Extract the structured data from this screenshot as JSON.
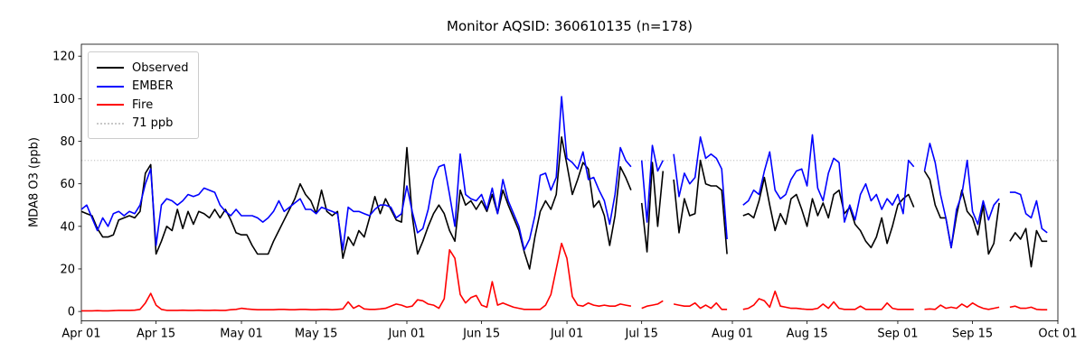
{
  "chart_data": {
    "type": "line",
    "title": "Monitor AQSID: 360610135 (n=178)",
    "ylabel": "MDA8 O3 (ppb)",
    "xlabel": "",
    "ylim": [
      -4.4,
      125.6
    ],
    "yticks": [
      0,
      20,
      40,
      60,
      80,
      100,
      120
    ],
    "xlim_days": [
      0,
      183
    ],
    "x_start_date": "Apr 01",
    "xticks": [
      {
        "day": 0,
        "label": "Apr 01"
      },
      {
        "day": 14,
        "label": "Apr 15"
      },
      {
        "day": 30,
        "label": "May 01"
      },
      {
        "day": 44,
        "label": "May 15"
      },
      {
        "day": 61,
        "label": "Jun 01"
      },
      {
        "day": 75,
        "label": "Jun 15"
      },
      {
        "day": 91,
        "label": "Jul 01"
      },
      {
        "day": 105,
        "label": "Jul 15"
      },
      {
        "day": 122,
        "label": "Aug 01"
      },
      {
        "day": 136,
        "label": "Aug 15"
      },
      {
        "day": 153,
        "label": "Sep 01"
      },
      {
        "day": 167,
        "label": "Sep 15"
      },
      {
        "day": 183,
        "label": "Oct 01"
      }
    ],
    "grid": false,
    "legend_position": "upper left",
    "legend": [
      "Observed",
      "EMBER",
      "Fire",
      "71 ppb"
    ],
    "reference_line": {
      "value": 71,
      "label": "71 ppb",
      "color": "#c8c8c8",
      "style": "dotted"
    },
    "series": [
      {
        "name": "Observed",
        "color": "#000000",
        "values": [
          47,
          46,
          45,
          39,
          35,
          35,
          36,
          43,
          44,
          45,
          44,
          47,
          65,
          69,
          27,
          33,
          40,
          38,
          48,
          39,
          47,
          41,
          47,
          46,
          44,
          48,
          44,
          48,
          43,
          37,
          36,
          36,
          31,
          27,
          27,
          27,
          33,
          38,
          43,
          48,
          53,
          60,
          55,
          52,
          46,
          57,
          47,
          45,
          47,
          25,
          35,
          31,
          38,
          35,
          44,
          54,
          46,
          53,
          48,
          43,
          42,
          77,
          45,
          27,
          33,
          40,
          46,
          50,
          46,
          38,
          33,
          57,
          50,
          52,
          48,
          52,
          47,
          55,
          46,
          57,
          50,
          44,
          38,
          28,
          20,
          35,
          47,
          52,
          48,
          55,
          82,
          69,
          55,
          62,
          70,
          67,
          49,
          52,
          45,
          31,
          45,
          68,
          63,
          57,
          null,
          51,
          28,
          70,
          40,
          66,
          null,
          62,
          37,
          53,
          45,
          46,
          71,
          60,
          59,
          59,
          57,
          27,
          null,
          null,
          45,
          46,
          44,
          52,
          63,
          50,
          38,
          46,
          41,
          53,
          55,
          48,
          40,
          53,
          45,
          51,
          44,
          55,
          57,
          46,
          49,
          41,
          38,
          33,
          30,
          35,
          44,
          32,
          40,
          50,
          53,
          55,
          49,
          null,
          66,
          62,
          50,
          44,
          44,
          30,
          45,
          57,
          47,
          44,
          36,
          50,
          27,
          32,
          51,
          null,
          33,
          37,
          34,
          39,
          21,
          38,
          33,
          33
        ]
      },
      {
        "name": "EMBER",
        "color": "#0000ff",
        "values": [
          48,
          50,
          44,
          38,
          44,
          40,
          46,
          47,
          45,
          47,
          46,
          50,
          60,
          67,
          31,
          50,
          53,
          52,
          50,
          52,
          55,
          54,
          55,
          58,
          57,
          56,
          50,
          47,
          45,
          48,
          45,
          45,
          45,
          44,
          42,
          44,
          47,
          52,
          47,
          49,
          51,
          53,
          48,
          48,
          46,
          49,
          48,
          47,
          46,
          29,
          49,
          47,
          47,
          46,
          45,
          48,
          50,
          50,
          49,
          44,
          46,
          59,
          47,
          37,
          39,
          48,
          62,
          68,
          69,
          55,
          40,
          74,
          55,
          53,
          52,
          55,
          48,
          58,
          46,
          62,
          52,
          46,
          40,
          29,
          34,
          45,
          64,
          65,
          57,
          63,
          101,
          72,
          70,
          67,
          75,
          62,
          63,
          57,
          52,
          41,
          55,
          77,
          71,
          68,
          null,
          71,
          42,
          78,
          66,
          71,
          null,
          74,
          54,
          65,
          60,
          63,
          82,
          72,
          74,
          72,
          67,
          34,
          null,
          null,
          50,
          52,
          57,
          55,
          66,
          75,
          57,
          53,
          55,
          62,
          66,
          67,
          59,
          83,
          58,
          52,
          65,
          72,
          70,
          42,
          50,
          43,
          55,
          60,
          52,
          55,
          48,
          53,
          50,
          55,
          46,
          71,
          68,
          null,
          66,
          79,
          70,
          55,
          44,
          30,
          48,
          55,
          71,
          47,
          41,
          52,
          43,
          50,
          53,
          null,
          56,
          56,
          55,
          46,
          44,
          52,
          39,
          37
        ]
      },
      {
        "name": "Fire",
        "color": "#ff0000",
        "values": [
          0.3,
          0.3,
          0.3,
          0.4,
          0.3,
          0.3,
          0.4,
          0.5,
          0.5,
          0.5,
          0.6,
          1,
          4,
          8.5,
          3,
          1,
          0.5,
          0.5,
          0.5,
          0.6,
          0.5,
          0.5,
          0.6,
          0.5,
          0.5,
          0.6,
          0.5,
          0.5,
          0.8,
          1,
          1.5,
          1.2,
          1,
          0.8,
          0.8,
          0.8,
          0.8,
          1,
          1,
          0.8,
          0.8,
          1,
          1,
          0.8,
          0.8,
          1,
          1,
          0.8,
          1,
          1.2,
          4.5,
          1.5,
          2.8,
          1.2,
          1,
          1,
          1.2,
          1.5,
          2.5,
          3.5,
          3,
          2,
          2.5,
          5.5,
          5,
          3.5,
          3,
          1.5,
          6,
          29,
          25,
          8,
          4,
          6.5,
          7.5,
          3,
          2,
          14,
          3,
          4,
          3,
          2,
          1.5,
          1,
          1,
          1,
          1,
          3,
          8,
          20,
          32,
          25,
          7,
          3,
          2.5,
          4,
          3,
          2.5,
          3,
          2.5,
          2.5,
          3.5,
          3,
          2.5,
          null,
          1.5,
          2.5,
          3,
          3.5,
          5,
          null,
          3.5,
          3,
          2.5,
          2.5,
          4,
          1.5,
          3,
          1.5,
          4,
          1,
          1,
          null,
          null,
          1,
          1.5,
          3,
          6,
          5,
          2,
          9.5,
          2.5,
          2,
          1.5,
          1.5,
          1.2,
          1,
          1,
          1.5,
          3.5,
          1.5,
          4.5,
          1.5,
          1,
          1,
          1,
          2.5,
          1,
          1,
          1,
          1,
          4,
          1.5,
          1,
          1,
          1,
          1,
          null,
          1,
          1.2,
          1,
          3,
          1.5,
          2,
          1.5,
          3.5,
          2,
          4,
          2.5,
          1.5,
          1,
          1.5,
          2,
          null,
          2,
          2.5,
          1.5,
          1.5,
          2,
          1,
          0.8,
          0.8
        ]
      }
    ]
  }
}
